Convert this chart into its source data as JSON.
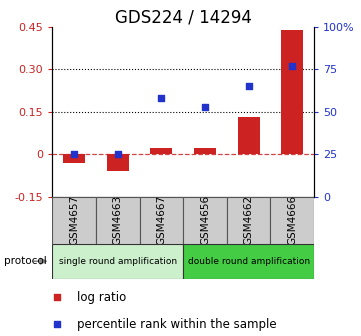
{
  "title": "GDS224 / 14294",
  "samples": [
    "GSM4657",
    "GSM4663",
    "GSM4667",
    "GSM4656",
    "GSM4662",
    "GSM4666"
  ],
  "log_ratio": [
    -0.03,
    -0.06,
    0.02,
    0.02,
    0.13,
    0.44
  ],
  "percentile_rank_pct": [
    25,
    25,
    58,
    53,
    65,
    77
  ],
  "left_ylim": [
    -0.15,
    0.45
  ],
  "right_ylim": [
    0,
    100
  ],
  "left_yticks": [
    -0.15,
    0.0,
    0.15,
    0.3,
    0.45
  ],
  "left_yticklabels": [
    "-0.15",
    "0",
    "0.15",
    "0.30",
    "0.45"
  ],
  "right_yticks": [
    0,
    25,
    50,
    75,
    100
  ],
  "right_yticklabels": [
    "0",
    "25",
    "50",
    "75",
    "100%"
  ],
  "bar_color": "#cc2222",
  "dot_color": "#2233cc",
  "bar_width": 0.5,
  "protocol_groups": [
    {
      "label": "single round amplification",
      "start": 0,
      "end": 3,
      "color": "#ccf0cc"
    },
    {
      "label": "double round amplification",
      "start": 3,
      "end": 6,
      "color": "#44cc44"
    }
  ],
  "protocol_label": "protocol",
  "legend_items": [
    {
      "label": "log ratio",
      "color": "#cc2222"
    },
    {
      "label": "percentile rank within the sample",
      "color": "#2233cc"
    }
  ],
  "left_tick_color": "#cc2222",
  "right_tick_color": "#2233cc",
  "title_fontsize": 12,
  "tick_fontsize": 8,
  "legend_fontsize": 8.5,
  "sample_fontsize": 7.5
}
